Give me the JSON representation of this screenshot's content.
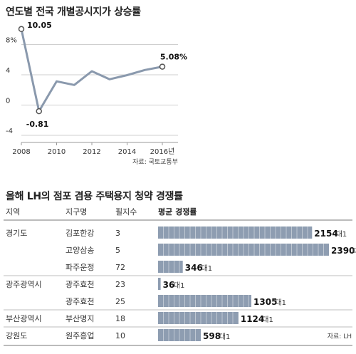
{
  "chart1": {
    "title": "연도별 전국 개별공시지가 상승률",
    "source": "자료: 국토교통부",
    "chart_data": {
      "type": "line",
      "x": [
        2008,
        2009,
        2010,
        2011,
        2012,
        2013,
        2014,
        2015,
        2016
      ],
      "y": [
        10.05,
        -0.81,
        3.14,
        2.66,
        4.47,
        3.41,
        3.96,
        4.63,
        5.08
      ],
      "x_tick_labels": [
        "2008",
        "2010",
        "2012",
        "2014",
        "2016년"
      ],
      "x_tick_values": [
        2008,
        2010,
        2012,
        2014,
        2016
      ],
      "y_tick_labels": [
        "8%",
        "4",
        "0",
        "-4"
      ],
      "y_tick_values": [
        8,
        4,
        0,
        -4
      ],
      "ylim": [
        -4,
        10.5
      ],
      "annotations": [
        {
          "x": 2008,
          "y": 10.05,
          "label": "10.05"
        },
        {
          "x": 2009,
          "y": -0.81,
          "label": "-0.81"
        },
        {
          "x": 2016,
          "y": 5.08,
          "label": "5.08%"
        }
      ],
      "line_color": "#8a99ad"
    }
  },
  "table2": {
    "title": "올해 LH의 점포 겸용 주택용지 청약 경쟁률",
    "headers": [
      "지역",
      "지구명",
      "필지수",
      "평균 경쟁률"
    ],
    "unit": "대1",
    "source": "자료: LH",
    "bar_color": "#8e9db1",
    "chart_data": {
      "type": "bar",
      "orientation": "horizontal",
      "categories": [
        "김포한강",
        "고양삼송",
        "파주운정",
        "광주효천",
        "광주효천",
        "부산명지",
        "원주흥업"
      ],
      "values": [
        2154,
        2390,
        346,
        36,
        1305,
        1124,
        598
      ],
      "xlim": [
        0,
        2390
      ]
    },
    "rows": [
      {
        "region": "경기도",
        "district": "김포한강",
        "lots": "3",
        "ratio": "2154"
      },
      {
        "region": "",
        "district": "고양삼송",
        "lots": "5",
        "ratio": "2390"
      },
      {
        "region": "",
        "district": "파주운정",
        "lots": "72",
        "ratio": "346"
      },
      {
        "region": "광주광역시",
        "district": "광주효천",
        "lots": "23",
        "ratio": "36"
      },
      {
        "region": "",
        "district": "광주효천",
        "lots": "25",
        "ratio": "1305"
      },
      {
        "region": "부산광역시",
        "district": "부산명지",
        "lots": "18",
        "ratio": "1124"
      },
      {
        "region": "강원도",
        "district": "원주흥업",
        "lots": "10",
        "ratio": "598"
      }
    ]
  }
}
